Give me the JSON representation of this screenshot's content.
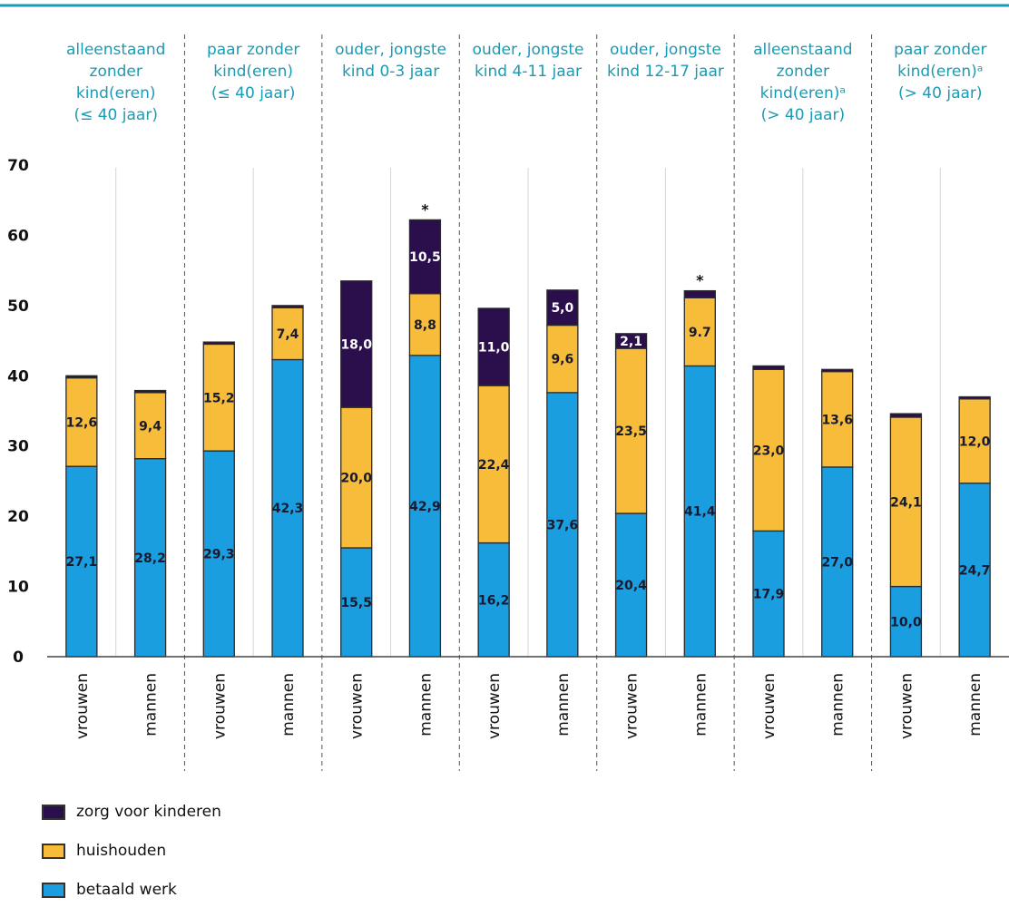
{
  "chart_data": {
    "type": "bar",
    "stacked": true,
    "ylim": [
      0,
      70
    ],
    "yticks": [
      0,
      10,
      20,
      30,
      40,
      50,
      60,
      70
    ],
    "grid": false,
    "legend_position": "bottom-left",
    "groups": [
      {
        "label": [
          "alleenstaand",
          "zonder",
          "kind(eren)",
          "(≤ 40 jaar)"
        ],
        "categories": [
          "vrouwen",
          "mannen"
        ]
      },
      {
        "label": [
          "paar zonder",
          "kind(eren)",
          "(≤ 40 jaar)"
        ],
        "categories": [
          "vrouwen",
          "mannen"
        ]
      },
      {
        "label": [
          "ouder, jongste",
          "kind 0-3 jaar"
        ],
        "categories": [
          "vrouwen",
          "mannen"
        ]
      },
      {
        "label": [
          "ouder, jongste",
          "kind 4-11 jaar"
        ],
        "categories": [
          "vrouwen",
          "mannen"
        ]
      },
      {
        "label": [
          "ouder, jongste",
          "kind  12-17 jaar"
        ],
        "categories": [
          "vrouwen",
          "mannen"
        ]
      },
      {
        "label": [
          "alleenstaand",
          "zonder",
          "kind(eren)ᵃ",
          "(> 40 jaar)"
        ],
        "categories": [
          "vrouwen",
          "mannen"
        ]
      },
      {
        "label": [
          "paar zonder",
          "kind(eren)ᵃ",
          "(> 40 jaar)"
        ],
        "categories": [
          "vrouwen",
          "mannen"
        ]
      }
    ],
    "series": [
      {
        "name": "betaald werk",
        "color": "#1a9ee0",
        "values": [
          27.1,
          28.2,
          29.3,
          42.3,
          15.5,
          42.9,
          16.2,
          37.6,
          20.4,
          41.4,
          17.9,
          27.0,
          10.0,
          24.7
        ],
        "labels": [
          "27,1",
          "28,2",
          "29,3",
          "42,3",
          "15,5",
          "42,9",
          "16,2",
          "37,6",
          "20,4",
          "41,4",
          "17,9",
          "27,0",
          "10,0",
          "24,7"
        ]
      },
      {
        "name": "huishouden",
        "color": "#f7bd3a",
        "values": [
          12.6,
          9.4,
          15.2,
          7.4,
          20.0,
          8.8,
          22.4,
          9.6,
          23.5,
          9.7,
          23.0,
          13.6,
          24.1,
          12.0
        ],
        "labels": [
          "12,6",
          "9,4",
          "15,2",
          "7,4",
          "20,0",
          "8,8",
          "22,4",
          "9,6",
          "23,5",
          "9.7",
          "23,0",
          "13,6",
          "24,1",
          "12,0"
        ]
      },
      {
        "name": "zorg voor kinderen",
        "color": "#2b0f4c",
        "values": [
          0.3,
          0.3,
          0.3,
          0.3,
          18.0,
          10.5,
          11.0,
          5.0,
          2.1,
          1.0,
          0.5,
          0.3,
          0.5,
          0.3
        ],
        "labels": [
          "",
          "",
          "",
          "",
          "18,0",
          "10,5",
          "11,0",
          "5,0",
          "2,1",
          "",
          "",
          "",
          "",
          ""
        ]
      }
    ],
    "stars": [
      false,
      false,
      false,
      false,
      false,
      true,
      false,
      false,
      false,
      true,
      false,
      false,
      false,
      false
    ],
    "star_symbol": "*"
  },
  "legend": [
    {
      "label": "zorg voor kinderen",
      "color": "#2b0f4c"
    },
    {
      "label": "huishouden",
      "color": "#f7bd3a"
    },
    {
      "label": "betaald werk",
      "color": "#1a9ee0"
    }
  ]
}
